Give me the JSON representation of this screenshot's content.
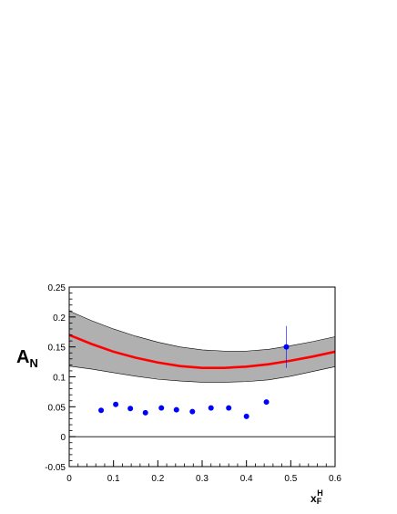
{
  "chart_data": {
    "type": "scatter",
    "title": "",
    "ylabel_main": "A",
    "ylabel_sub": "N",
    "xlabel_main": "x",
    "xlabel_sub": "F",
    "xlabel_sup": "H",
    "xlim": [
      0,
      0.6
    ],
    "ylim": [
      -0.05,
      0.25
    ],
    "x_ticks": [
      0,
      0.1,
      0.2,
      0.3,
      0.4,
      0.5,
      0.6
    ],
    "x_tick_labels": [
      "0",
      "0.1",
      "0.2",
      "0.3",
      "0.4",
      "0.5",
      "0.6"
    ],
    "y_ticks": [
      -0.05,
      0,
      0.05,
      0.1,
      0.15,
      0.2,
      0.25
    ],
    "y_tick_labels": [
      "-0.05",
      "0",
      "0.05",
      "0.1",
      "0.15",
      "0.2",
      "0.25"
    ],
    "grid": false,
    "zero_line": true,
    "points": {
      "color": "#0000ff",
      "x": [
        0.072,
        0.105,
        0.138,
        0.172,
        0.208,
        0.242,
        0.278,
        0.32,
        0.36,
        0.4,
        0.445,
        0.49
      ],
      "y": [
        0.044,
        0.054,
        0.047,
        0.04,
        0.048,
        0.045,
        0.042,
        0.048,
        0.048,
        0.034,
        0.058,
        0.15
      ],
      "err": [
        0.003,
        0.003,
        0.003,
        0.003,
        0.003,
        0.003,
        0.003,
        0.003,
        0.003,
        0.003,
        0.003,
        0.035
      ]
    },
    "curve": {
      "color": "#ff0000",
      "x": [
        0,
        0.05,
        0.1,
        0.15,
        0.2,
        0.25,
        0.3,
        0.35,
        0.4,
        0.45,
        0.5,
        0.55,
        0.6
      ],
      "y": [
        0.17,
        0.155,
        0.142,
        0.132,
        0.124,
        0.118,
        0.115,
        0.115,
        0.117,
        0.121,
        0.127,
        0.134,
        0.142
      ]
    },
    "band": {
      "color": "#b0b0b0",
      "x": [
        0,
        0.05,
        0.1,
        0.15,
        0.2,
        0.25,
        0.3,
        0.35,
        0.4,
        0.45,
        0.5,
        0.55,
        0.6
      ],
      "upper": [
        0.21,
        0.194,
        0.18,
        0.168,
        0.158,
        0.15,
        0.145,
        0.143,
        0.143,
        0.146,
        0.152,
        0.159,
        0.167
      ],
      "lower": [
        0.118,
        0.113,
        0.107,
        0.101,
        0.096,
        0.093,
        0.091,
        0.091,
        0.092,
        0.095,
        0.101,
        0.109,
        0.117
      ]
    }
  }
}
